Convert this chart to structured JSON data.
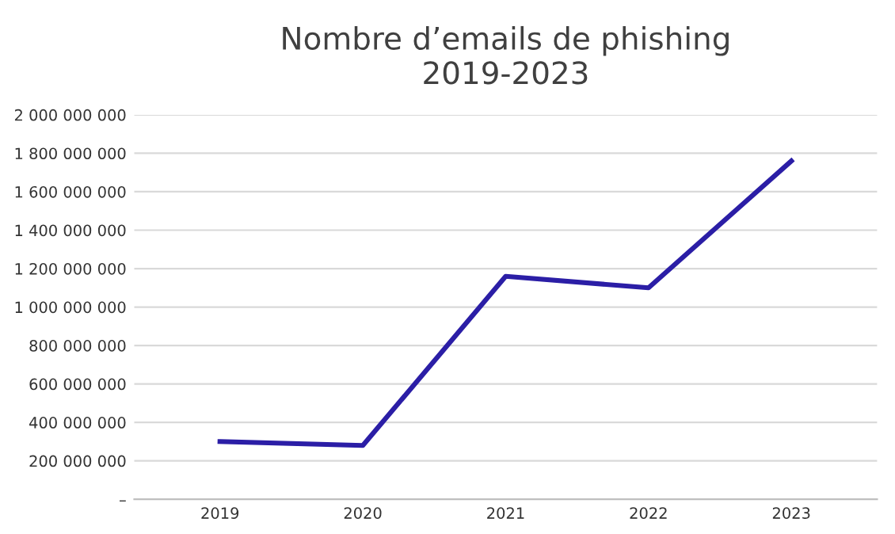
{
  "chart_data": {
    "type": "line",
    "title": "Nombre d’emails de phishing\n2019-2023",
    "categories": [
      "2019",
      "2020",
      "2021",
      "2022",
      "2023"
    ],
    "series": [
      {
        "color": "#2b1ea6",
        "values": [
          300000000,
          280000000,
          1160000000,
          1100000000,
          1760000000
        ]
      }
    ],
    "ylim": [
      0,
      2000000000
    ],
    "yticks": [
      {
        "value": 0,
        "label": "–"
      },
      {
        "value": 200000000,
        "label": "200 000 000"
      },
      {
        "value": 400000000,
        "label": "400 000 000"
      },
      {
        "value": 600000000,
        "label": "600 000 000"
      },
      {
        "value": 800000000,
        "label": "800 000 000"
      },
      {
        "value": 1000000000,
        "label": "1 000 000 000"
      },
      {
        "value": 1200000000,
        "label": "1 200 000 000"
      },
      {
        "value": 1400000000,
        "label": "1 400 000 000"
      },
      {
        "value": 1600000000,
        "label": "1 600 000 000"
      },
      {
        "value": 1800000000,
        "label": "1 800 000 000"
      },
      {
        "value": 2000000000,
        "label": "2 000 000 000"
      }
    ],
    "grid": "y",
    "marker": "none",
    "line_style": "solid"
  }
}
